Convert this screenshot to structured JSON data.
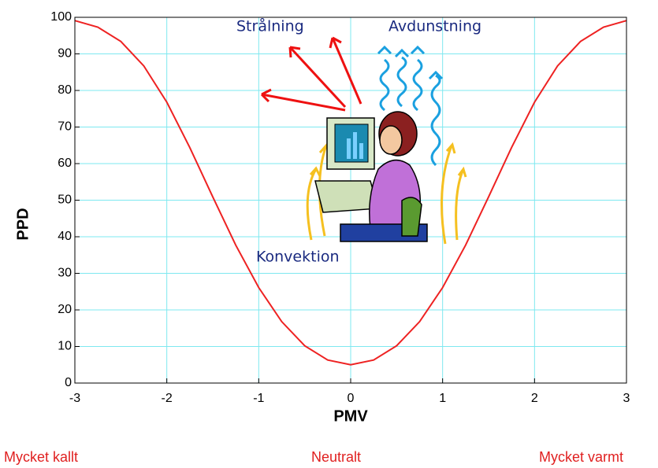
{
  "chart_data": {
    "type": "line",
    "xlabel": "PMV",
    "ylabel": "PPD",
    "x": [
      -3,
      -2.75,
      -2.5,
      -2.25,
      -2,
      -1.75,
      -1.5,
      -1.25,
      -1,
      -0.75,
      -0.5,
      -0.25,
      0,
      0.25,
      0.5,
      0.75,
      1,
      1.25,
      1.5,
      1.75,
      2,
      2.25,
      2.5,
      2.75,
      3
    ],
    "values": [
      99.1,
      97.3,
      93.4,
      86.7,
      76.8,
      64.4,
      50.9,
      37.7,
      26.1,
      16.8,
      10.2,
      6.3,
      5,
      6.3,
      10.2,
      16.8,
      26.1,
      37.7,
      50.9,
      64.4,
      76.8,
      86.7,
      93.4,
      97.3,
      99.1
    ],
    "color": "#ee2222",
    "xlim": [
      -3,
      3
    ],
    "xticks": [
      -3,
      -2,
      -1,
      0,
      1,
      2,
      3
    ],
    "ylim": [
      0,
      100
    ],
    "yticks": [
      0,
      10,
      20,
      30,
      40,
      50,
      60,
      70,
      80,
      90,
      100
    ],
    "grid": true,
    "annotations": [
      "Strålning",
      "Avdunstning",
      "Konvektion"
    ],
    "scale_labels": [
      "Mycket kallt",
      "Neutralt",
      "Mycket varmt"
    ]
  }
}
